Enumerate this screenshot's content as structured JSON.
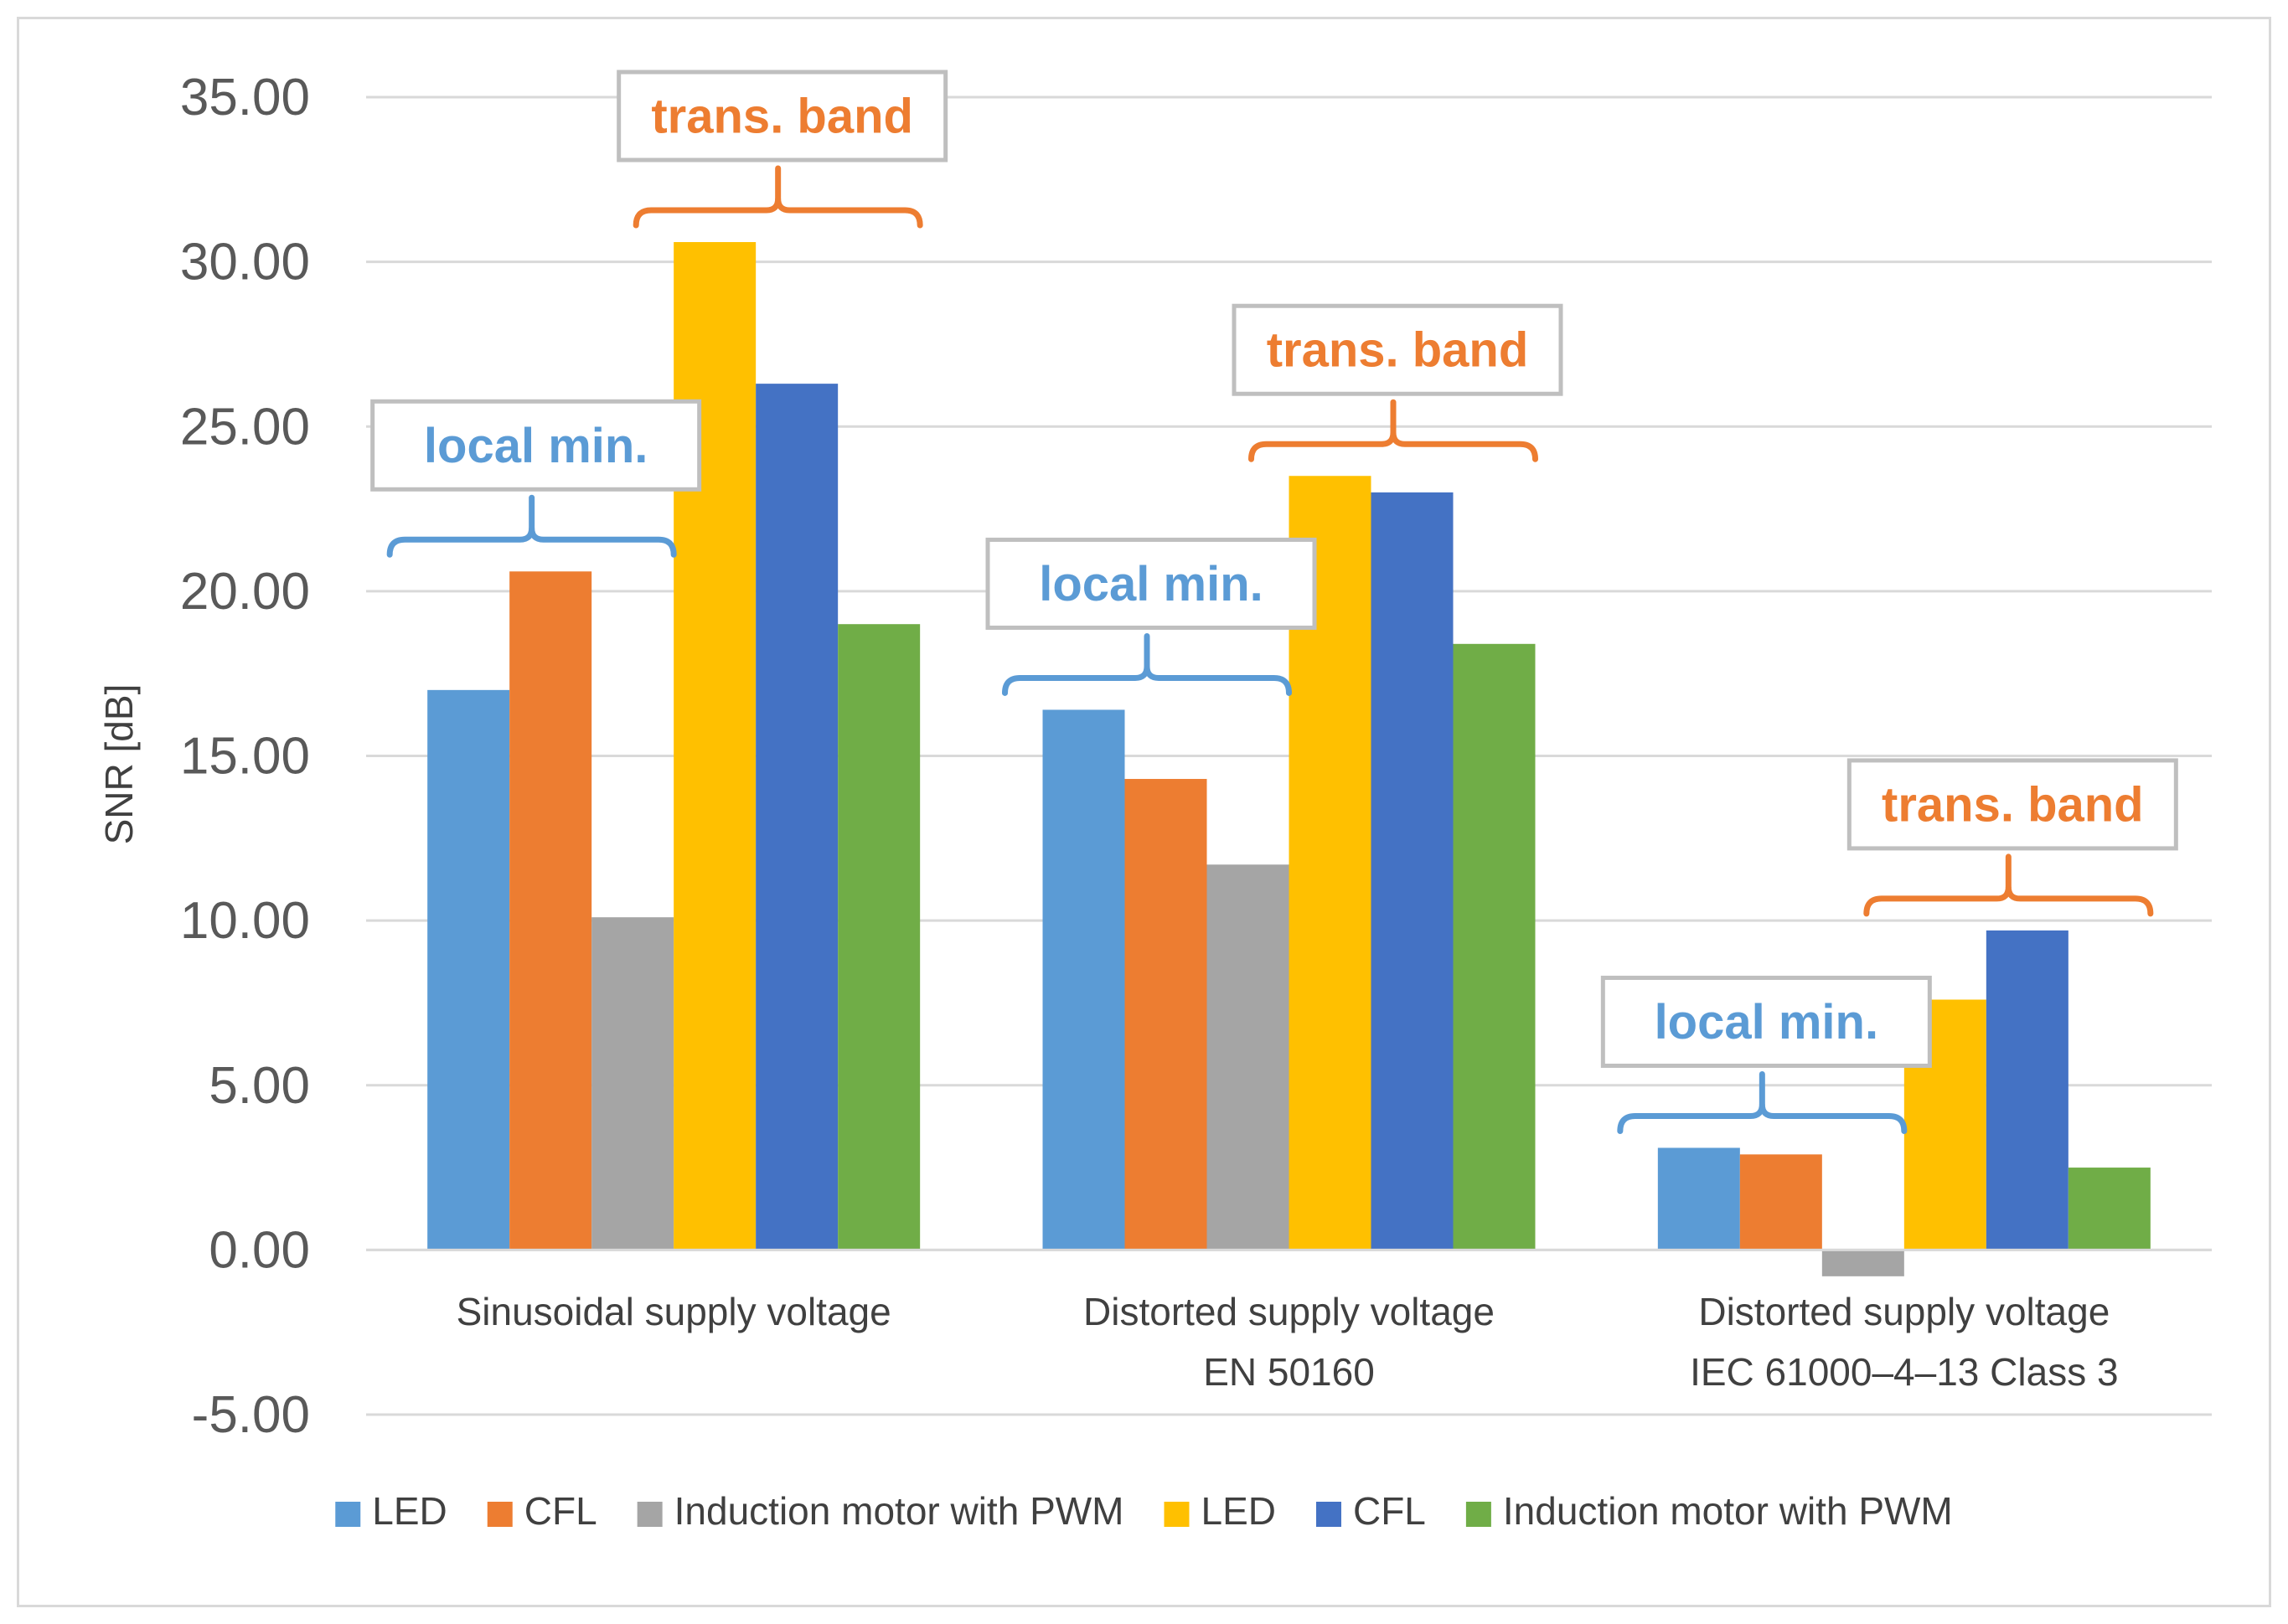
{
  "chart_data": {
    "type": "bar",
    "title": "",
    "xlabel": "",
    "ylabel": "SNR  [dB]",
    "ylim": [
      -5,
      35
    ],
    "yticks": [
      "35.00",
      "30.00",
      "25.00",
      "20.00",
      "15.00",
      "10.00",
      "5.00",
      "0.00",
      "-5.00"
    ],
    "ytick_values": [
      35,
      30,
      25,
      20,
      15,
      10,
      5,
      0,
      -5
    ],
    "grid": true,
    "legend_position": "bottom",
    "categories": [
      [
        "Sinusoidal supply voltage"
      ],
      [
        "Distorted supply voltage",
        "EN 50160"
      ],
      [
        "Distorted supply voltage",
        "IEC 61000–4–13 Class 3"
      ]
    ],
    "series": [
      {
        "name": "LED",
        "color": "#5b9bd5",
        "values": [
          17.0,
          16.4,
          3.1
        ]
      },
      {
        "name": "CFL",
        "color": "#ed7d31",
        "values": [
          20.6,
          14.3,
          2.9
        ]
      },
      {
        "name": "Induction motor with PWM",
        "color": "#a5a5a5",
        "values": [
          10.1,
          11.7,
          -0.8
        ]
      },
      {
        "name": "LED",
        "color": "#ffc000",
        "values": [
          30.6,
          23.5,
          7.6
        ]
      },
      {
        "name": "CFL",
        "color": "#4472c4",
        "values": [
          26.3,
          23.0,
          9.7
        ]
      },
      {
        "name": "Induction motor with PWM",
        "color": "#70ad47",
        "values": [
          19.0,
          18.4,
          2.5
        ]
      }
    ],
    "annotations": [
      {
        "text": "local min.",
        "color": "#5b9bd5",
        "group": 0,
        "series_span": [
          0,
          2
        ]
      },
      {
        "text": "trans. band",
        "color": "#ed7d31",
        "group": 0,
        "series_span": [
          3,
          5
        ]
      },
      {
        "text": "local min.",
        "color": "#5b9bd5",
        "group": 1,
        "series_span": [
          0,
          2
        ]
      },
      {
        "text": "trans. band",
        "color": "#ed7d31",
        "group": 1,
        "series_span": [
          3,
          5
        ]
      },
      {
        "text": "local min.",
        "color": "#5b9bd5",
        "group": 2,
        "series_span": [
          0,
          2
        ]
      },
      {
        "text": "trans. band",
        "color": "#ed7d31",
        "group": 2,
        "series_span": [
          3,
          5
        ]
      }
    ]
  }
}
